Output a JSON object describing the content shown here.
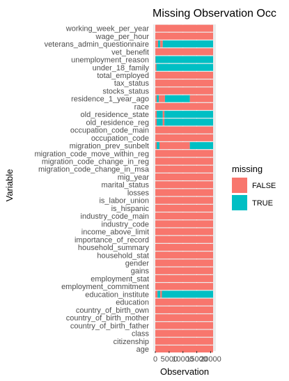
{
  "chart_data": {
    "type": "bar",
    "orientation": "horizontal",
    "title": "Missing Observation Occ",
    "xlabel": "Observation",
    "ylabel": "Variable",
    "xticks": [
      "0",
      "5000",
      "10000",
      "15000",
      "20000"
    ],
    "xlim": [
      0,
      20000
    ],
    "grid": true,
    "legend_placement": "right",
    "legend": {
      "title": "missing",
      "items": [
        {
          "label": "FALSE",
          "color": "#F8766D"
        },
        {
          "label": "TRUE",
          "color": "#00BFC4"
        }
      ]
    },
    "categories": [
      "working_week_per_year",
      "wage_per_hour",
      "veterans_admin_questionnaire",
      "vet_benefit",
      "unemployment_reason",
      "under_18_family",
      "total_employed",
      "tax_status",
      "stocks_status",
      "residence_1_year_ago",
      "race",
      "old_residence_state",
      "old_residence_reg",
      "occupation_code_main",
      "occupation_code",
      "migration_prev_sunbelt",
      "migration_code_move_within_reg",
      "migration_code_change_in_reg",
      "migration_code_change_in_msa",
      "mig_year",
      "marital_status",
      "losses",
      "is_labor_union",
      "is_hispanic",
      "industry_code_main",
      "industry_code",
      "income_above_limit",
      "importance_of_record",
      "household_summary",
      "household_stat",
      "gender",
      "gains",
      "employment_stat",
      "employment_commitment",
      "education_institute",
      "education",
      "country_of_birth_own",
      "country_of_birth_mother",
      "country_of_birth_father",
      "class",
      "citizenship",
      "age"
    ],
    "segments": {
      "veterans_admin_questionnaire": [
        [
          0,
          1000,
          "FALSE"
        ],
        [
          1000,
          1800,
          "TRUE"
        ],
        [
          1800,
          2700,
          "FALSE"
        ],
        [
          2700,
          20900,
          "TRUE"
        ]
      ],
      "unemployment_reason": [
        [
          0,
          100,
          "FALSE"
        ],
        [
          100,
          20900,
          "TRUE"
        ]
      ],
      "under_18_family": [
        [
          0,
          400,
          "FALSE"
        ],
        [
          400,
          20900,
          "TRUE"
        ]
      ],
      "residence_1_year_ago": [
        [
          0,
          500,
          "FALSE"
        ],
        [
          500,
          1300,
          "TRUE"
        ],
        [
          1300,
          3500,
          "FALSE"
        ],
        [
          3500,
          12500,
          "TRUE"
        ],
        [
          12500,
          20900,
          "FALSE"
        ]
      ],
      "old_residence_state": [
        [
          0,
          500,
          "FALSE"
        ],
        [
          500,
          2700,
          "TRUE"
        ],
        [
          2700,
          3300,
          "FALSE"
        ],
        [
          3300,
          20900,
          "TRUE"
        ]
      ],
      "old_residence_reg": [
        [
          0,
          500,
          "FALSE"
        ],
        [
          500,
          2700,
          "TRUE"
        ],
        [
          2700,
          3300,
          "FALSE"
        ],
        [
          3300,
          20900,
          "TRUE"
        ]
      ],
      "migration_prev_sunbelt": [
        [
          0,
          500,
          "FALSE"
        ],
        [
          500,
          1500,
          "TRUE"
        ],
        [
          1500,
          12500,
          "FALSE"
        ],
        [
          12500,
          20900,
          "TRUE"
        ]
      ],
      "education_institute": [
        [
          0,
          800,
          "FALSE"
        ],
        [
          800,
          1800,
          "TRUE"
        ],
        [
          1800,
          2400,
          "FALSE"
        ],
        [
          2400,
          20900,
          "TRUE"
        ]
      ]
    },
    "total_rows": 20900
  }
}
